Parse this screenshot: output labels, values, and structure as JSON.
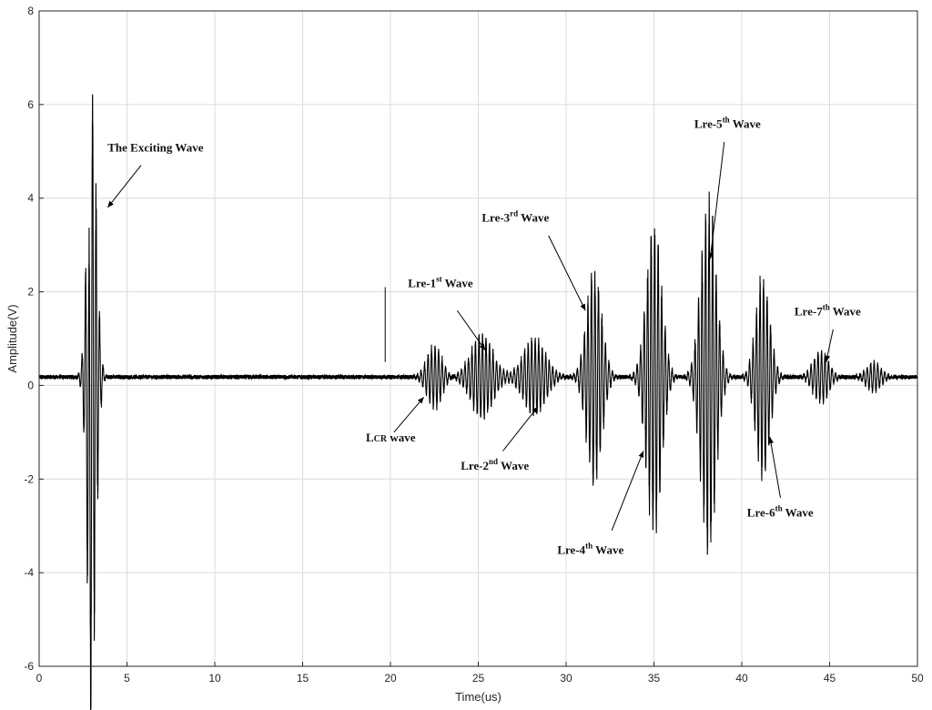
{
  "chart_data": {
    "type": "line",
    "title": "",
    "xlabel": "Time(us)",
    "ylabel": "Amplitude(V)",
    "xlim": [
      0,
      50
    ],
    "ylim": [
      -6,
      8
    ],
    "xticks": [
      0,
      5,
      10,
      15,
      20,
      25,
      30,
      35,
      40,
      45,
      50
    ],
    "yticks": [
      -6,
      -4,
      -2,
      0,
      2,
      4,
      6,
      8
    ],
    "grid": true,
    "baseline": 0.18,
    "line_color": "#000000",
    "bursts": [
      {
        "name": "The Exciting Wave",
        "center": 3.0,
        "amplitude": 6.3,
        "width": 0.35,
        "freq": 5.0
      },
      {
        "name": "LCR wave",
        "center": 22.5,
        "amplitude": 0.65,
        "width": 0.6,
        "freq": 5.0
      },
      {
        "name": "Lre-1st Wave",
        "center": 25.2,
        "amplitude": 0.85,
        "width": 0.9,
        "freq": 5.0
      },
      {
        "name": "Lre-2nd Wave",
        "center": 28.2,
        "amplitude": 0.8,
        "width": 0.9,
        "freq": 5.0
      },
      {
        "name": "Lre-3rd Wave",
        "center": 31.6,
        "amplitude": 2.2,
        "width": 0.6,
        "freq": 5.0
      },
      {
        "name": "Lre-4th Wave",
        "center": 35.0,
        "amplitude": 3.2,
        "width": 0.6,
        "freq": 5.0
      },
      {
        "name": "Lre-5th Wave",
        "center": 38.1,
        "amplitude": 3.7,
        "width": 0.6,
        "freq": 5.0
      },
      {
        "name": "Lre-6th Wave",
        "center": 41.2,
        "amplitude": 2.1,
        "width": 0.55,
        "freq": 5.0
      },
      {
        "name": "Lre-7th Wave",
        "center": 44.5,
        "amplitude": 0.55,
        "width": 0.6,
        "freq": 5.0
      },
      {
        "name": "",
        "center": 47.5,
        "amplitude": 0.3,
        "width": 0.6,
        "freq": 5.0
      }
    ],
    "annotations": [
      {
        "id": "exciting",
        "text": "The Exciting Wave",
        "label_at": [
          3.9,
          5.0
        ],
        "arrow_from": [
          5.8,
          4.7
        ],
        "arrow_to": [
          3.9,
          3.8
        ]
      },
      {
        "id": "lcr",
        "text_main": "L",
        "text_sub": "CR",
        "text_rest": " wave",
        "label_at": [
          18.6,
          -1.2
        ],
        "arrow_from": [
          20.2,
          -1.0
        ],
        "arrow_to": [
          21.9,
          -0.25
        ]
      },
      {
        "id": "lre1",
        "text_main": "Lre-1",
        "text_sup": "st",
        "text_rest": " Wave",
        "label_at": [
          21.0,
          2.1
        ],
        "arrow_from": [
          23.8,
          1.6
        ],
        "arrow_to": [
          25.4,
          0.75
        ]
      },
      {
        "id": "lre2",
        "text_main": "Lre-2",
        "text_sup": "nd",
        "text_rest": " Wave",
        "label_at": [
          24.0,
          -1.8
        ],
        "arrow_from": [
          26.4,
          -1.4
        ],
        "arrow_to": [
          28.4,
          -0.45
        ]
      },
      {
        "id": "lre3",
        "text_main": "Lre-3",
        "text_sup": "rd",
        "text_rest": " Wave",
        "label_at": [
          25.2,
          3.5
        ],
        "arrow_from": [
          29.0,
          3.2
        ],
        "arrow_to": [
          31.1,
          1.6
        ]
      },
      {
        "id": "lre4",
        "text_main": "Lre-4",
        "text_sup": "th",
        "text_rest": " Wave",
        "label_at": [
          29.5,
          -3.6
        ],
        "arrow_from": [
          32.6,
          -3.1
        ],
        "arrow_to": [
          34.4,
          -1.4
        ]
      },
      {
        "id": "lre5",
        "text_main": "Lre-5",
        "text_sup": "th",
        "text_rest": " Wave",
        "label_at": [
          37.3,
          5.5
        ],
        "arrow_from": [
          39.0,
          5.2
        ],
        "arrow_to": [
          38.2,
          2.7
        ]
      },
      {
        "id": "lre6",
        "text_main": "Lre-6",
        "text_sup": "th",
        "text_rest": " Wave",
        "label_at": [
          40.3,
          -2.8
        ],
        "arrow_from": [
          42.2,
          -2.4
        ],
        "arrow_to": [
          41.6,
          -1.1
        ]
      },
      {
        "id": "lre7",
        "text_main": "Lre-7",
        "text_sup": "th",
        "text_rest": " Wave",
        "label_at": [
          43.0,
          1.5
        ],
        "arrow_from": [
          45.2,
          1.2
        ],
        "arrow_to": [
          44.8,
          0.5
        ]
      }
    ],
    "stray_marks": [
      {
        "x": 19.7,
        "y1": 0.5,
        "y2": 2.1
      }
    ]
  }
}
